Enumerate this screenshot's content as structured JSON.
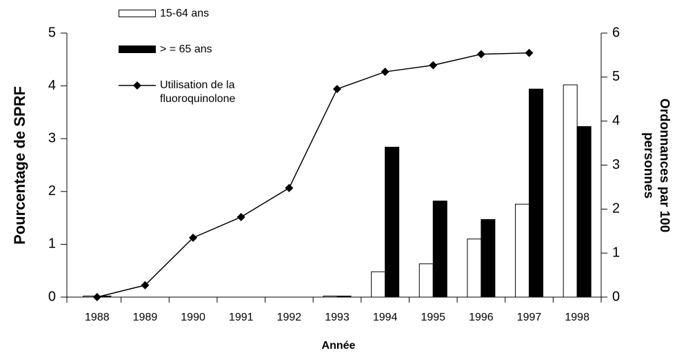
{
  "chart_data": {
    "type": "bar",
    "xlabel": "Année",
    "ylabel": "Pourcentage de SPRF",
    "y2label": [
      "Ordonnances par 100",
      "personnes"
    ],
    "categories": [
      "1988",
      "1989",
      "1990",
      "1991",
      "1992",
      "1993",
      "1994",
      "1995",
      "1996",
      "1997",
      "1998"
    ],
    "ylim": [
      0,
      5
    ],
    "yticks": [
      0,
      1,
      2,
      3,
      4,
      5
    ],
    "y2lim": [
      0,
      6
    ],
    "y2ticks": [
      0,
      1,
      2,
      3,
      4,
      5,
      6
    ],
    "series": [
      {
        "name": "15-64 ans",
        "type": "bar",
        "color": "#ffffff",
        "values": [
          0.02,
          0,
          0,
          0,
          0,
          0.02,
          0.48,
          0.63,
          1.1,
          1.76,
          4.02
        ]
      },
      {
        "name": "> = 65 ans",
        "type": "bar",
        "color": "#000000",
        "values": [
          0.02,
          0,
          0,
          0,
          0,
          0.02,
          2.84,
          1.82,
          1.47,
          3.94,
          3.23
        ]
      },
      {
        "name": "Utilisation de la fluoroquinolone",
        "type": "line",
        "axis": "y2",
        "color": "#000000",
        "values": [
          0,
          0.27,
          1.35,
          1.82,
          2.48,
          4.73,
          5.12,
          5.27,
          5.52,
          5.55,
          null
        ]
      }
    ]
  }
}
